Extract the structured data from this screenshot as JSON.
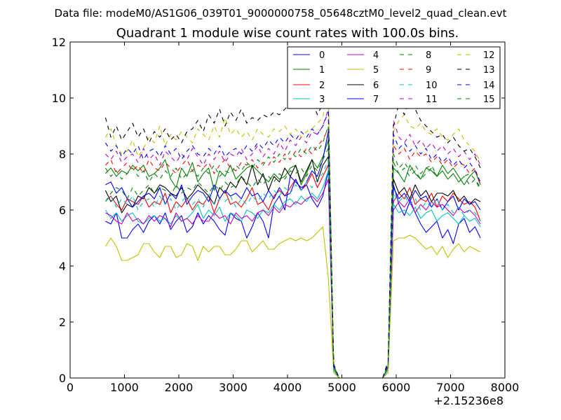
{
  "chart_data": {
    "type": "line",
    "suptitle": "Data file: modeM0/AS1G06_039T01_9000000758_05648cztM0_level2_quad_clean.evt",
    "title": "Quadrant 1 module wise count rates with 100.0s bins.",
    "xlabel": "",
    "ylabel": "",
    "x_offset_label": "+2.15236e8",
    "xlim": [
      0,
      8000
    ],
    "ylim": [
      0,
      12
    ],
    "xticks": [
      "0",
      "1000",
      "2000",
      "3000",
      "4000",
      "5000",
      "6000",
      "7000",
      "8000"
    ],
    "yticks": [
      "0",
      "2",
      "4",
      "6",
      "8",
      "10",
      "12"
    ],
    "x_start": 650,
    "x_step": 100,
    "legend_position": "top-right",
    "series": [
      {
        "name": "0",
        "color": "#0000ff",
        "style": "solid",
        "values": [
          5.6,
          5.5,
          5.9,
          5.0,
          5.0,
          5.3,
          5.5,
          5.2,
          5.6,
          5.8,
          5.5,
          5.9,
          5.3,
          5.6,
          5.8,
          5.2,
          5.4,
          5.9,
          5.5,
          5.8,
          5.6,
          5.3,
          5.1,
          5.9,
          5.7,
          5.6,
          5.0,
          5.4,
          5.9,
          5.6,
          5.0,
          6.2,
          6.5,
          6.0,
          7.2,
          7.0,
          6.8,
          6.9,
          6.4,
          6.1,
          6.5,
          7.4,
          0.3,
          0,
          0,
          0,
          0,
          0,
          0,
          0,
          0,
          0,
          0.3,
          6.9,
          6.2,
          5.8,
          6.3,
          5.9,
          5.5,
          5.2,
          5.4,
          5.6,
          5.0,
          5.3,
          4.8,
          5.5,
          5.7,
          5.2,
          5.4,
          5.0
        ]
      },
      {
        "name": "1",
        "color": "#008000",
        "style": "solid",
        "values": [
          7.3,
          7.5,
          7.2,
          7.4,
          7.3,
          7.6,
          7.4,
          7.6,
          7.2,
          7.3,
          7.5,
          7.8,
          7.1,
          6.8,
          7.5,
          7.2,
          7.7,
          7.0,
          7.3,
          7.5,
          6.7,
          7.4,
          7.2,
          7.6,
          7.1,
          7.3,
          7.5,
          7.6,
          7.4,
          7.2,
          7.0,
          7.3,
          7.1,
          7.2,
          7.5,
          7.6,
          6.9,
          7.3,
          7.8,
          7.5,
          7.9,
          8.5,
          0.4,
          0,
          0,
          0,
          0,
          0,
          0,
          0,
          0,
          0,
          0.4,
          7.5,
          7.3,
          7.0,
          7.6,
          7.3,
          7.1,
          7.5,
          7.4,
          7.2,
          7.6,
          7.3,
          7.5,
          7.2,
          6.9,
          7.2,
          7.4,
          6.9
        ]
      },
      {
        "name": "2",
        "color": "#ff0000",
        "style": "solid",
        "values": [
          6.3,
          6.5,
          6.2,
          6.0,
          6.4,
          6.3,
          6.2,
          6.5,
          6.1,
          6.3,
          6.2,
          6.6,
          5.9,
          6.3,
          6.1,
          6.4,
          6.0,
          6.3,
          6.2,
          6.5,
          5.9,
          6.4,
          6.7,
          6.2,
          6.3,
          6.1,
          6.4,
          6.8,
          6.2,
          6.3,
          6.0,
          6.5,
          6.7,
          6.5,
          6.8,
          7.1,
          6.7,
          6.9,
          7.3,
          6.8,
          7.2,
          7.6,
          0.3,
          0,
          0,
          0,
          0,
          0,
          0,
          0,
          0,
          0,
          0.3,
          6.3,
          6.6,
          6.4,
          6.8,
          6.2,
          6.4,
          6.3,
          6.6,
          6.1,
          6.5,
          6.3,
          6.6,
          6.4,
          6.2,
          6.3,
          6.1,
          5.6
        ]
      },
      {
        "name": "3",
        "color": "#00bfbf",
        "style": "solid",
        "values": [
          6.0,
          5.7,
          5.9,
          5.6,
          5.8,
          5.9,
          5.6,
          5.5,
          5.7,
          5.8,
          5.6,
          5.7,
          5.5,
          5.8,
          5.6,
          5.7,
          5.9,
          6.2,
          5.7,
          6.0,
          5.8,
          6.1,
          5.6,
          5.9,
          5.8,
          5.6,
          6.0,
          5.9,
          5.7,
          6.0,
          5.9,
          6.2,
          6.0,
          6.3,
          6.4,
          6.2,
          6.5,
          6.3,
          6.6,
          6.4,
          6.8,
          7.4,
          0.3,
          0,
          0,
          0,
          0,
          0,
          0,
          0,
          0,
          0,
          0.3,
          6.2,
          5.9,
          6.0,
          5.8,
          6.1,
          5.7,
          5.9,
          6.0,
          5.6,
          5.8,
          5.9,
          5.7,
          5.5,
          5.8,
          5.6,
          5.7,
          5.4
        ]
      },
      {
        "name": "4",
        "color": "#bf00bf",
        "style": "solid",
        "values": [
          5.9,
          5.8,
          5.6,
          5.5,
          5.9,
          5.6,
          5.7,
          5.5,
          5.8,
          5.6,
          5.8,
          5.7,
          5.4,
          5.9,
          5.6,
          5.7,
          5.5,
          5.8,
          5.6,
          5.6,
          5.9,
          5.7,
          5.8,
          5.5,
          5.9,
          5.7,
          5.8,
          5.6,
          5.9,
          6.0,
          5.8,
          6.1,
          5.9,
          6.2,
          6.1,
          6.3,
          6.2,
          6.4,
          6.5,
          6.3,
          6.6,
          7.1,
          0.2,
          0,
          0,
          0,
          0,
          0,
          0,
          0,
          0,
          0,
          0.2,
          6.0,
          6.3,
          6.1,
          6.4,
          5.9,
          6.2,
          6.0,
          6.3,
          6.1,
          6.2,
          6.0,
          5.8,
          6.1,
          5.9,
          6.0,
          5.8,
          5.5
        ]
      },
      {
        "name": "5",
        "color": "#bfbf00",
        "style": "solid",
        "values": [
          4.7,
          5.0,
          4.7,
          4.2,
          4.2,
          4.3,
          4.4,
          4.8,
          4.8,
          4.5,
          4.3,
          4.7,
          4.7,
          4.3,
          4.4,
          4.8,
          4.7,
          4.2,
          4.7,
          4.5,
          4.7,
          4.7,
          4.4,
          4.4,
          4.6,
          4.9,
          4.9,
          4.5,
          4.7,
          4.9,
          4.6,
          4.6,
          4.8,
          4.9,
          5.0,
          4.9,
          5.0,
          4.9,
          5.0,
          5.2,
          5.4,
          3.6,
          0.2,
          0,
          0,
          0,
          0,
          0,
          0,
          0,
          0,
          0,
          0.2,
          4.9,
          5.0,
          5.0,
          5.1,
          5.0,
          4.8,
          4.6,
          4.7,
          4.4,
          4.7,
          4.3,
          4.6,
          4.8,
          4.5,
          4.7,
          4.6,
          4.5
        ]
      },
      {
        "name": "6",
        "color": "#000000",
        "style": "solid",
        "values": [
          6.7,
          6.3,
          6.5,
          5.9,
          6.2,
          6.1,
          6.5,
          6.4,
          6.8,
          6.6,
          6.9,
          6.8,
          6.6,
          6.5,
          6.8,
          6.4,
          6.6,
          6.9,
          6.7,
          6.5,
          6.2,
          6.8,
          6.6,
          7.0,
          6.8,
          7.2,
          6.9,
          7.6,
          6.9,
          7.3,
          6.7,
          7.2,
          7.0,
          7.5,
          7.2,
          7.6,
          7.0,
          7.4,
          7.8,
          7.0,
          7.6,
          7.9,
          0.4,
          0,
          0,
          0,
          0,
          0,
          0,
          0,
          0,
          0,
          0.4,
          7.1,
          6.6,
          6.8,
          6.4,
          6.9,
          6.5,
          6.7,
          6.3,
          6.6,
          6.6,
          6.5,
          6.7,
          6.3,
          6.5,
          6.2,
          6.4,
          6.3
        ]
      },
      {
        "name": "7",
        "color": "#0000ff",
        "style": "solid",
        "values": [
          6.9,
          7.0,
          6.6,
          6.8,
          6.4,
          6.1,
          6.3,
          6.5,
          6.6,
          6.4,
          6.8,
          6.2,
          6.6,
          6.4,
          6.9,
          6.2,
          6.5,
          6.7,
          6.6,
          6.3,
          6.9,
          6.4,
          6.7,
          6.5,
          6.6,
          6.4,
          6.8,
          6.5,
          6.6,
          6.3,
          6.7,
          6.4,
          6.8,
          6.5,
          6.6,
          7.1,
          6.7,
          7.0,
          7.4,
          7.2,
          7.8,
          8.8,
          0.4,
          0,
          0,
          0,
          0,
          0,
          0,
          0,
          0,
          0,
          0.4,
          6.8,
          6.4,
          6.6,
          6.3,
          6.7,
          6.4,
          6.5,
          6.1,
          6.4,
          6.0,
          6.3,
          6.5,
          6.0,
          6.4,
          6.2,
          6.3,
          6.0
        ]
      },
      {
        "name": "8",
        "color": "#008000",
        "style": "dashed",
        "values": [
          6.3,
          6.6,
          6.8,
          6.7,
          6.4,
          6.8,
          6.5,
          6.7,
          6.9,
          6.6,
          6.8,
          6.7,
          6.5,
          6.9,
          6.6,
          6.8,
          6.7,
          7.0,
          6.8,
          6.6,
          6.9,
          6.7,
          7.0,
          6.8,
          6.9,
          7.2,
          7.0,
          6.8,
          7.1,
          6.9,
          7.2,
          7.0,
          7.3,
          7.1,
          7.4,
          7.3,
          7.5,
          7.2,
          7.6,
          7.4,
          7.8,
          8.2,
          0.4,
          0,
          0,
          0,
          0,
          0,
          0,
          0,
          0,
          0,
          0.4,
          7.7,
          7.3,
          7.5,
          7.2,
          7.4,
          7.1,
          7.3,
          7.5,
          7.2,
          7.4,
          7.1,
          7.3,
          7.0,
          7.2,
          7.3,
          7.1,
          6.8
        ]
      },
      {
        "name": "9",
        "color": "#ff0000",
        "style": "dashed",
        "values": [
          7.6,
          7.8,
          7.3,
          7.5,
          7.7,
          7.4,
          7.6,
          7.3,
          7.8,
          7.5,
          7.4,
          7.7,
          7.5,
          7.3,
          7.6,
          7.8,
          7.4,
          7.6,
          7.5,
          7.7,
          7.3,
          7.6,
          7.8,
          7.5,
          7.4,
          7.7,
          7.6,
          7.8,
          7.5,
          7.7,
          7.6,
          7.9,
          7.7,
          8.0,
          7.8,
          8.1,
          7.9,
          8.2,
          8.0,
          8.3,
          8.5,
          8.9,
          0.4,
          0,
          0,
          0,
          0,
          0,
          0,
          0,
          0,
          0,
          0.4,
          8.3,
          8.0,
          8.2,
          7.8,
          8.1,
          7.9,
          8.0,
          7.7,
          7.9,
          7.6,
          7.8,
          7.5,
          7.7,
          7.6,
          7.3,
          7.5,
          6.9
        ]
      },
      {
        "name": "10",
        "color": "#00bfbf",
        "style": "dashed",
        "values": [
          6.3,
          6.5,
          6.1,
          6.4,
          6.2,
          6.5,
          6.0,
          6.3,
          6.4,
          6.1,
          6.5,
          6.2,
          6.4,
          6.0,
          6.3,
          6.5,
          6.2,
          6.4,
          6.1,
          6.6,
          6.2,
          6.4,
          6.3,
          6.5,
          6.1,
          6.4,
          6.2,
          6.5,
          6.3,
          6.6,
          6.4,
          6.7,
          6.5,
          6.8,
          6.6,
          6.9,
          6.7,
          7.0,
          6.8,
          7.1,
          7.3,
          7.8,
          0.3,
          0,
          0,
          0,
          0,
          0,
          0,
          0,
          0,
          0,
          0.3,
          6.6,
          6.3,
          6.5,
          6.2,
          6.4,
          6.0,
          6.3,
          6.1,
          6.4,
          6.0,
          6.2,
          5.9,
          6.1,
          5.8,
          6.0,
          5.9,
          5.6
        ]
      },
      {
        "name": "11",
        "color": "#bf00bf",
        "style": "dashed",
        "values": [
          8.0,
          7.8,
          8.1,
          7.7,
          7.9,
          8.0,
          7.7,
          8.2,
          7.8,
          8.0,
          7.6,
          8.1,
          7.9,
          7.7,
          8.0,
          7.8,
          8.2,
          7.9,
          7.6,
          8.0,
          7.8,
          8.1,
          7.7,
          8.0,
          7.9,
          8.2,
          7.8,
          8.0,
          8.3,
          7.9,
          8.2,
          8.0,
          8.4,
          8.1,
          8.5,
          8.3,
          8.6,
          8.4,
          8.8,
          8.7,
          9.0,
          9.6,
          0.4,
          0,
          0,
          0,
          0,
          0,
          0,
          0,
          0,
          0,
          0.5,
          9.2,
          8.6,
          8.4,
          8.7,
          8.3,
          8.5,
          8.2,
          8.4,
          8.1,
          8.3,
          8.0,
          8.2,
          7.9,
          8.1,
          7.8,
          8.0,
          7.6
        ]
      },
      {
        "name": "12",
        "color": "#bfbf00",
        "style": "dashed",
        "values": [
          8.6,
          8.9,
          8.3,
          8.0,
          8.1,
          8.5,
          7.9,
          8.2,
          8.6,
          8.4,
          9.0,
          8.3,
          8.7,
          8.5,
          8.8,
          8.6,
          8.4,
          8.9,
          8.7,
          8.5,
          9.0,
          8.6,
          9.3,
          8.7,
          8.9,
          8.6,
          8.8,
          8.5,
          8.9,
          8.7,
          8.6,
          8.9,
          8.8,
          9.0,
          8.7,
          8.9,
          8.6,
          8.8,
          8.9,
          9.1,
          9.3,
          10.4,
          0.5,
          0,
          0,
          0,
          0,
          0,
          0,
          0,
          0,
          0,
          0.5,
          8.8,
          9.2,
          9.4,
          9.0,
          8.9,
          9.1,
          8.8,
          8.7,
          8.9,
          8.6,
          8.5,
          8.7,
          8.9,
          8.5,
          8.3,
          8.1,
          7.7
        ]
      },
      {
        "name": "13",
        "color": "#000000",
        "style": "dashed",
        "values": [
          9.3,
          8.6,
          9.0,
          8.5,
          8.8,
          9.1,
          8.6,
          8.9,
          8.4,
          8.8,
          8.6,
          8.9,
          8.5,
          8.7,
          8.4,
          8.8,
          8.9,
          9.2,
          8.8,
          9.4,
          9.1,
          9.6,
          9.0,
          9.5,
          9.2,
          9.6,
          9.1,
          9.3,
          9.2,
          9.4,
          9.3,
          9.5,
          9.4,
          9.6,
          9.8,
          9.7,
          9.9,
          10.1,
          9.9,
          9.4,
          9.8,
          9.9,
          0.5,
          0,
          0,
          0,
          0,
          0,
          0,
          0,
          0,
          0,
          0.6,
          9.0,
          9.8,
          9.4,
          10.0,
          9.6,
          9.2,
          9.0,
          8.8,
          8.6,
          8.7,
          8.4,
          8.6,
          8.3,
          8.1,
          8.2,
          7.9,
          7.5
        ]
      },
      {
        "name": "14",
        "color": "#0000ff",
        "style": "dashed",
        "values": [
          8.4,
          8.1,
          8.3,
          7.9,
          8.2,
          8.0,
          8.3,
          7.8,
          8.1,
          8.2,
          7.9,
          8.3,
          8.0,
          8.2,
          7.8,
          8.1,
          8.3,
          8.0,
          7.9,
          8.2,
          8.0,
          8.3,
          7.9,
          8.1,
          8.2,
          8.0,
          8.3,
          8.1,
          8.4,
          8.2,
          8.5,
          8.3,
          8.6,
          8.4,
          8.7,
          8.5,
          8.8,
          8.6,
          8.9,
          8.7,
          9.0,
          9.5,
          0.4,
          0,
          0,
          0,
          0,
          0,
          0,
          0,
          0,
          0,
          0.5,
          8.7,
          8.2,
          8.4,
          8.1,
          8.3,
          8.0,
          8.2,
          7.8,
          8.0,
          7.7,
          7.9,
          7.6,
          7.8,
          7.5,
          7.7,
          7.4,
          7.0
        ]
      },
      {
        "name": "15",
        "color": "#008000",
        "style": "dashed",
        "values": [
          7.5,
          7.2,
          7.4,
          7.1,
          7.3,
          7.5,
          7.2,
          7.4,
          7.0,
          7.3,
          7.1,
          7.4,
          7.2,
          7.5,
          7.1,
          7.3,
          7.4,
          7.2,
          7.5,
          7.3,
          7.6,
          7.2,
          7.4,
          7.3,
          7.6,
          7.4,
          7.7,
          7.5,
          7.8,
          7.6,
          7.9,
          7.7,
          8.0,
          7.8,
          8.1,
          7.9,
          8.2,
          8.0,
          8.3,
          8.1,
          8.4,
          9.0,
          0.4,
          0,
          0,
          0,
          0,
          0,
          0,
          0,
          0,
          0,
          0.4,
          8.0,
          7.5,
          7.7,
          7.4,
          7.6,
          7.3,
          7.5,
          7.6,
          7.2,
          7.4,
          7.1,
          7.3,
          7.0,
          7.2,
          6.9,
          7.1,
          6.7
        ]
      }
    ]
  }
}
